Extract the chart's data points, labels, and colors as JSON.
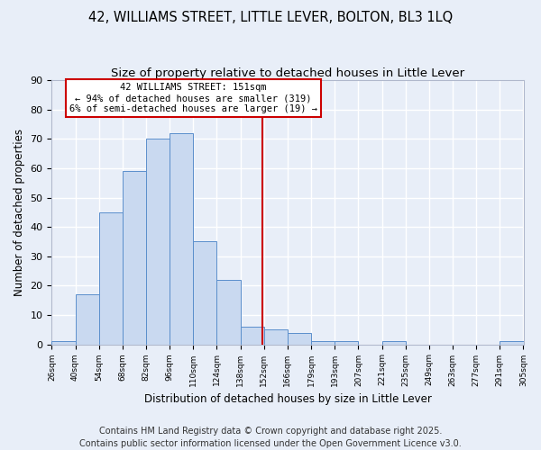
{
  "title": "42, WILLIAMS STREET, LITTLE LEVER, BOLTON, BL3 1LQ",
  "subtitle": "Size of property relative to detached houses in Little Lever",
  "xlabel": "Distribution of detached houses by size in Little Lever",
  "ylabel": "Number of detached properties",
  "bin_labels": [
    "26sqm",
    "40sqm",
    "54sqm",
    "68sqm",
    "82sqm",
    "96sqm",
    "110sqm",
    "124sqm",
    "138sqm",
    "152sqm",
    "166sqm",
    "179sqm",
    "193sqm",
    "207sqm",
    "221sqm",
    "235sqm",
    "249sqm",
    "263sqm",
    "277sqm",
    "291sqm",
    "305sqm"
  ],
  "counts": [
    1,
    17,
    45,
    59,
    70,
    72,
    35,
    22,
    6,
    5,
    4,
    1,
    1,
    0,
    1,
    0,
    0,
    0,
    0,
    1
  ],
  "bar_color": "#c9d9f0",
  "bar_edge_color": "#5b8fcc",
  "background_color": "#e8eef8",
  "grid_color": "#ffffff",
  "vline_x": 151,
  "vline_color": "#cc0000",
  "annotation_text": "42 WILLIAMS STREET: 151sqm\n← 94% of detached houses are smaller (319)\n6% of semi-detached houses are larger (19) →",
  "annotation_box_color": "#ffffff",
  "annotation_box_edge": "#cc0000",
  "ylim": [
    0,
    90
  ],
  "yticks": [
    0,
    10,
    20,
    30,
    40,
    50,
    60,
    70,
    80,
    90
  ],
  "footer": "Contains HM Land Registry data © Crown copyright and database right 2025.\nContains public sector information licensed under the Open Government Licence v3.0.",
  "title_fontsize": 10.5,
  "subtitle_fontsize": 9.5,
  "footer_fontsize": 7.0
}
